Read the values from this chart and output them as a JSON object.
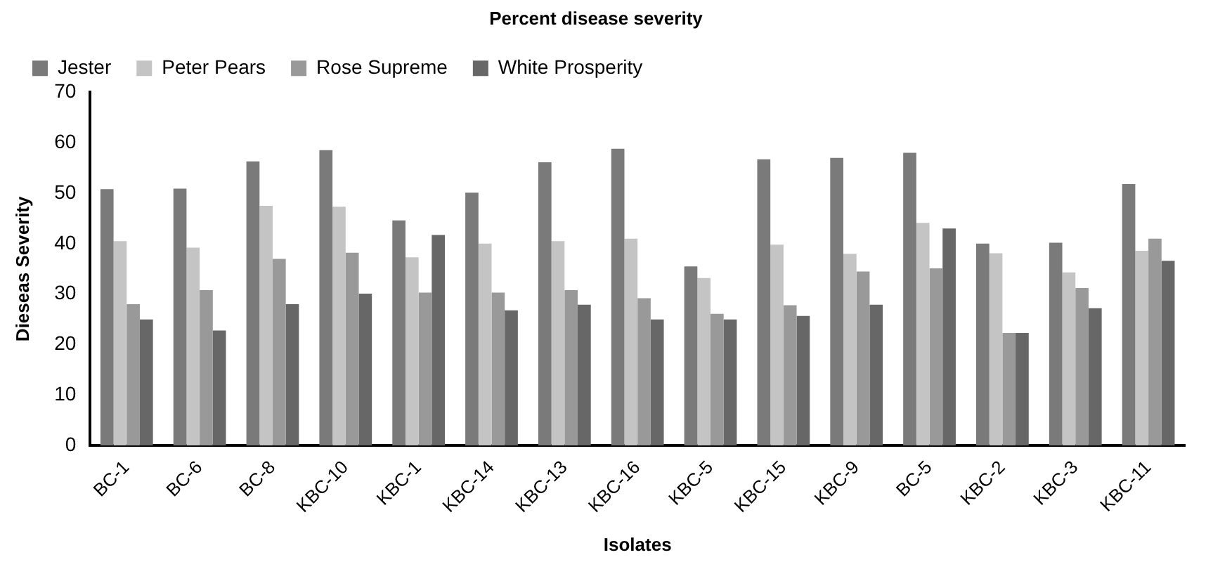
{
  "chart_data": {
    "type": "bar",
    "title": "Percent disease severity",
    "xlabel": "Isolates",
    "ylabel": "Dieseas Severity",
    "categories": [
      "BC-1",
      "BC-6",
      "BC-8",
      "KBC-10",
      "KBC-1",
      "KBC-14",
      "KBC-13",
      "KBC-16",
      "KBC-5",
      "KBC-15",
      "KBC-9",
      "BC-5",
      "KBC-2",
      "KBC-3",
      "KBC-11"
    ],
    "series": [
      {
        "name": "Jester",
        "color": "#7a7a7a",
        "values": [
          50.8,
          50.9,
          56.3,
          58.5,
          44.6,
          50.1,
          56.1,
          58.8,
          35.5,
          56.7,
          57,
          58,
          40,
          40.2,
          51.8
        ]
      },
      {
        "name": "Peter Pears",
        "color": "#c4c4c4",
        "values": [
          40.5,
          39.2,
          47.5,
          47.3,
          37.3,
          40,
          40.5,
          41,
          33.2,
          39.8,
          38,
          44.1,
          38.1,
          34.3,
          38.6
        ]
      },
      {
        "name": "Rose Supreme",
        "color": "#999999",
        "values": [
          28,
          30.8,
          37,
          38.2,
          30.3,
          30.3,
          30.8,
          29.2,
          26.1,
          27.8,
          34.5,
          35.1,
          22.3,
          31.2,
          41
        ]
      },
      {
        "name": "White Prosperity",
        "color": "#676767",
        "values": [
          25,
          22.8,
          28,
          30.1,
          41.7,
          26.8,
          27.9,
          25,
          25,
          25.7,
          27.9,
          43,
          22.3,
          27.2,
          36.6
        ]
      }
    ],
    "ylim": [
      0,
      70
    ],
    "yticks": [
      0,
      10,
      20,
      30,
      40,
      50,
      60,
      70
    ],
    "grid": false,
    "legend": "top"
  }
}
